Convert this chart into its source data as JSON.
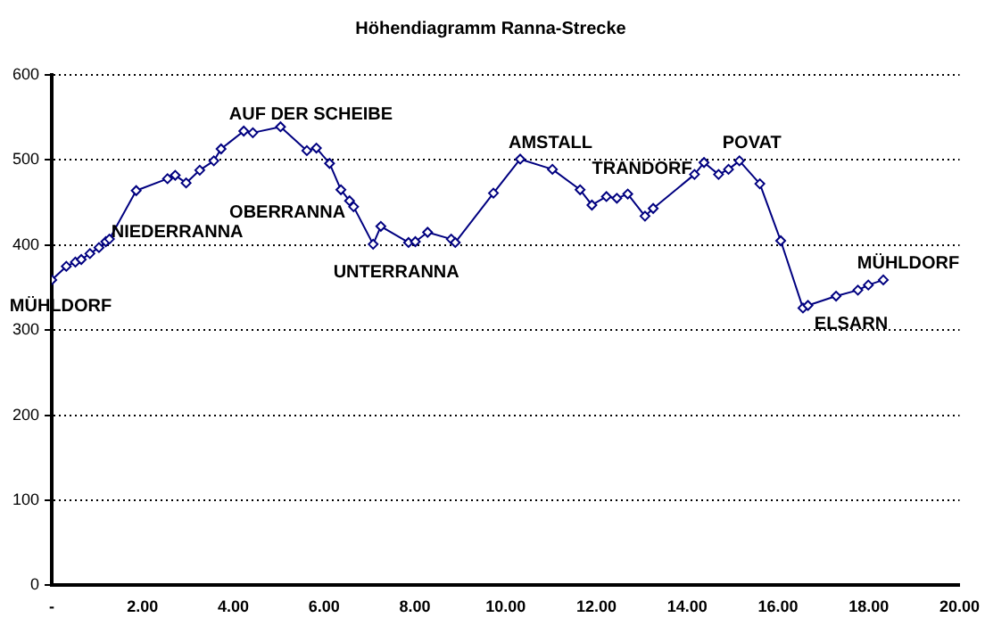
{
  "chart_data": {
    "type": "line",
    "title": "Höhendiagramm Ranna-Strecke",
    "x": [
      0,
      0.32,
      0.52,
      0.65,
      0.84,
      1.04,
      1.19,
      1.27,
      1.86,
      2.55,
      2.72,
      2.96,
      3.26,
      3.57,
      3.73,
      4.23,
      4.43,
      5.04,
      5.62,
      5.83,
      6.12,
      6.37,
      6.56,
      6.65,
      7.08,
      7.25,
      7.86,
      8.01,
      8.28,
      8.8,
      8.89,
      9.73,
      10.32,
      11.03,
      11.64,
      11.9,
      12.22,
      12.45,
      12.69,
      13.07,
      13.25,
      14.16,
      14.37,
      14.69,
      14.91,
      15.15,
      15.6,
      16.06,
      16.55,
      16.66,
      17.28,
      17.76,
      17.99,
      18.32
    ],
    "series": [
      {
        "color": "#000080",
        "values": [
          359,
          375,
          380,
          383,
          390,
          397,
          404,
          407,
          464,
          478,
          482,
          473,
          488,
          499,
          513,
          534,
          532,
          539,
          511,
          514,
          496,
          465,
          452,
          445,
          401,
          422,
          403,
          404,
          415,
          407,
          403,
          461,
          501,
          489,
          465,
          447,
          457,
          455,
          460,
          434,
          443,
          483,
          497,
          483,
          489,
          499,
          472,
          405,
          326,
          329,
          340,
          347,
          353,
          359
        ]
      }
    ],
    "xlim": [
      0,
      20
    ],
    "xticks": [
      {
        "value": 0,
        "label": "-"
      },
      {
        "value": 2,
        "label": "2.00"
      },
      {
        "value": 4,
        "label": "4.00"
      },
      {
        "value": 6,
        "label": "6.00"
      },
      {
        "value": 8,
        "label": "8.00"
      },
      {
        "value": 10,
        "label": "10.00"
      },
      {
        "value": 12,
        "label": "12.00"
      },
      {
        "value": 14,
        "label": "14.00"
      },
      {
        "value": 16,
        "label": "16.00"
      },
      {
        "value": 18,
        "label": "18.00"
      },
      {
        "value": 20,
        "label": "20.00"
      }
    ],
    "ylim": [
      0,
      600
    ],
    "yticks": [
      0,
      100,
      200,
      300,
      400,
      500,
      600
    ],
    "grid": "y",
    "marker": "diamond",
    "line_style": "solid",
    "annotations": [
      "MÜHLDORF",
      "NIEDERRANNA",
      "AUF DER SCHEIBE",
      "OBERRANNA",
      "UNTERRANNA",
      "AMSTALL",
      "TRANDORF",
      "POVAT",
      "ELSARN",
      "MÜHLDORF"
    ]
  }
}
